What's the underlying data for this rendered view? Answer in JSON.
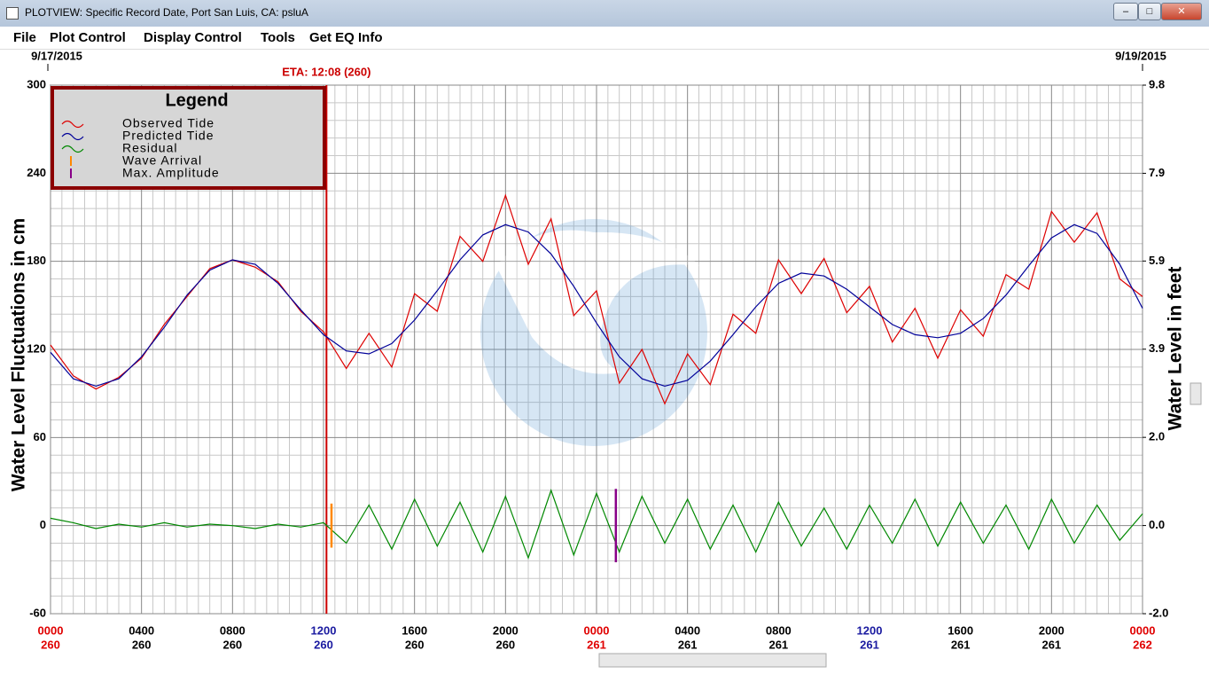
{
  "window": {
    "title": "PLOTVIEW: Specific Record Date, Port San Luis, CA: psluA"
  },
  "menu": [
    "File",
    "Plot Control",
    "Display Control",
    "Tools",
    "Get EQ Info"
  ],
  "chart_data": {
    "type": "line",
    "start_date": "9/17/2015",
    "end_date": "9/19/2015",
    "annotation": {
      "text": "ETA: 12:08 (260)",
      "x": 12.13,
      "color": "#cc0000"
    },
    "y_label": "Water Level Fluctuations in cm",
    "y2_label": "Water Level in feet",
    "legend_title": "Legend",
    "x": [
      0,
      1,
      2,
      3,
      4,
      5,
      6,
      7,
      8,
      9,
      10,
      11,
      12,
      13,
      14,
      15,
      16,
      17,
      18,
      19,
      20,
      21,
      22,
      23,
      24,
      25,
      26,
      27,
      28,
      29,
      30,
      31,
      32,
      33,
      34,
      35,
      36,
      37,
      38,
      39,
      40,
      41,
      42,
      43,
      44,
      45,
      46,
      47,
      48
    ],
    "xlim": [
      0,
      48
    ],
    "xticks": [
      {
        "value": 0,
        "label": "0000"
      },
      {
        "value": 4,
        "label": "0400"
      },
      {
        "value": 8,
        "label": "0800"
      },
      {
        "value": 12,
        "label": "1200"
      },
      {
        "value": 16,
        "label": "1600"
      },
      {
        "value": 20,
        "label": "2000"
      },
      {
        "value": 24,
        "label": "0000"
      },
      {
        "value": 28,
        "label": "0400"
      },
      {
        "value": 32,
        "label": "0800"
      },
      {
        "value": 36,
        "label": "1200"
      },
      {
        "value": 40,
        "label": "1600"
      },
      {
        "value": 44,
        "label": "2000"
      },
      {
        "value": 48,
        "label": "0000"
      }
    ],
    "xtick_days": [
      "260",
      "260",
      "260",
      "260",
      "260",
      "260",
      "261",
      "261",
      "261",
      "261",
      "261",
      "261",
      "262"
    ],
    "xtick_colors": [
      "#e00000",
      "#000000",
      "#000000",
      "#1a1aa0",
      "#000000",
      "#000000",
      "#e00000",
      "#000000",
      "#000000",
      "#1a1aa0",
      "#000000",
      "#000000",
      "#e00000"
    ],
    "ylim": [
      -60,
      300
    ],
    "yticks": [
      -60,
      0,
      60,
      120,
      180,
      240,
      300
    ],
    "y2lim": [
      -1.97,
      9.84
    ],
    "y2ticks": [
      {
        "value": -1.97,
        "label": "-2.0"
      },
      {
        "value": 0,
        "label": "0.0"
      },
      {
        "value": 1.97,
        "label": "2.0"
      },
      {
        "value": 3.94,
        "label": "3.9"
      },
      {
        "value": 5.91,
        "label": "5.9"
      },
      {
        "value": 7.87,
        "label": "7.9"
      },
      {
        "value": 9.84,
        "label": "9.8"
      }
    ],
    "grid": true,
    "series": [
      {
        "name": "Observed Tide",
        "color": "#dd0000",
        "values": [
          123,
          102,
          93,
          101,
          114,
          137,
          156,
          175,
          181,
          176,
          166,
          146,
          132,
          107,
          131,
          108,
          158,
          146,
          197,
          180,
          225,
          178,
          209,
          143,
          160,
          97,
          120,
          83,
          117,
          96,
          144,
          131,
          181,
          158,
          182,
          145,
          163,
          125,
          148,
          114,
          147,
          129,
          171,
          161,
          214,
          193,
          213,
          168,
          156
        ]
      },
      {
        "name": "Predicted Tide",
        "color": "#000099",
        "values": [
          118,
          100,
          95,
          100,
          115,
          135,
          157,
          174,
          181,
          178,
          165,
          147,
          130,
          119,
          117,
          124,
          140,
          160,
          181,
          198,
          205,
          200,
          185,
          163,
          138,
          115,
          100,
          95,
          99,
          112,
          130,
          149,
          165,
          172,
          170,
          161,
          149,
          137,
          130,
          128,
          131,
          141,
          157,
          177,
          196,
          205,
          199,
          178,
          148
        ]
      },
      {
        "name": "Residual",
        "color": "#008800",
        "values": [
          5,
          2,
          -2,
          1,
          -1,
          2,
          -1,
          1,
          0,
          -2,
          1,
          -1,
          2,
          -12,
          14,
          -16,
          18,
          -14,
          16,
          -18,
          20,
          -22,
          24,
          -20,
          22,
          -18,
          20,
          -12,
          18,
          -16,
          14,
          -18,
          16,
          -14,
          12,
          -16,
          14,
          -12,
          18,
          -14,
          16,
          -12,
          14,
          -16,
          18,
          -12,
          14,
          -10,
          8
        ]
      }
    ],
    "markers": [
      {
        "name": "Wave Arrival",
        "color": "#ff8800",
        "x": 12.35,
        "values": [
          15,
          -15
        ]
      },
      {
        "name": "Max. Amplitude",
        "color": "#880088",
        "x": 24.85,
        "values": [
          25,
          -25
        ]
      }
    ]
  }
}
